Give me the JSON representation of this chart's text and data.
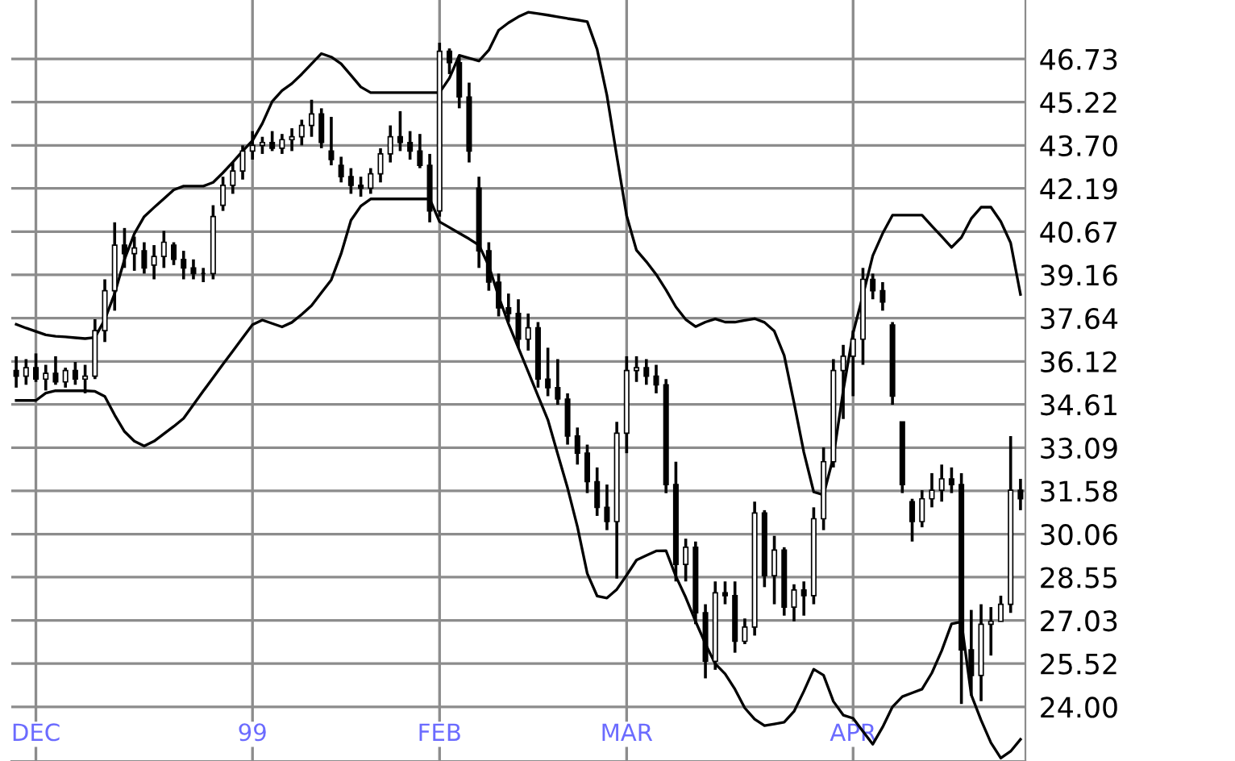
{
  "chart_data": {
    "type": "candlestick",
    "color": "#000000",
    "categories": [
      null,
      null,
      "DEC",
      null,
      null,
      null,
      null,
      null,
      null,
      null,
      null,
      null,
      null,
      null,
      null,
      null,
      null,
      null,
      null,
      null,
      null,
      null,
      null,
      null,
      "99",
      null,
      null,
      null,
      null,
      null,
      null,
      null,
      null,
      null,
      null,
      null,
      null,
      null,
      null,
      null,
      null,
      null,
      null,
      "FEB",
      null,
      null,
      null,
      null,
      null,
      null,
      null,
      null,
      null,
      null,
      null,
      null,
      null,
      null,
      null,
      null,
      null,
      null,
      "MAR",
      null,
      null,
      null,
      null,
      null,
      null,
      null,
      null,
      null,
      null,
      null,
      null,
      null,
      null,
      null,
      null,
      null,
      null,
      null,
      null,
      null,
      null,
      "APR",
      null,
      null,
      null,
      null,
      null,
      null,
      null,
      null,
      null,
      null,
      null,
      null,
      null,
      null,
      null,
      null,
      null
    ],
    "ohlc": [
      [
        35.8,
        36.3,
        35.2,
        35.6
      ],
      [
        35.6,
        36.2,
        35.3,
        35.9
      ],
      [
        35.9,
        36.4,
        35.4,
        35.5
      ],
      [
        35.5,
        36.0,
        35.1,
        35.7
      ],
      [
        35.7,
        36.3,
        35.3,
        35.4
      ],
      [
        35.4,
        35.9,
        35.2,
        35.8
      ],
      [
        35.8,
        36.1,
        35.3,
        35.5
      ],
      [
        35.5,
        36.0,
        35.0,
        35.6
      ],
      [
        35.6,
        37.6,
        35.5,
        37.2
      ],
      [
        37.2,
        39.0,
        36.8,
        38.6
      ],
      [
        38.6,
        41.0,
        37.9,
        40.2
      ],
      [
        40.2,
        40.8,
        39.4,
        39.9
      ],
      [
        39.9,
        40.5,
        39.3,
        40.1
      ],
      [
        40.0,
        40.3,
        39.2,
        39.4
      ],
      [
        39.5,
        40.2,
        39.0,
        39.8
      ],
      [
        39.8,
        40.7,
        39.4,
        40.3
      ],
      [
        40.2,
        40.3,
        39.5,
        39.7
      ],
      [
        39.7,
        40.0,
        39.0,
        39.4
      ],
      [
        39.4,
        39.7,
        39.0,
        39.2
      ],
      [
        39.2,
        39.4,
        38.9,
        39.2
      ],
      [
        39.2,
        41.6,
        39.0,
        41.2
      ],
      [
        41.6,
        42.6,
        41.4,
        42.3
      ],
      [
        42.3,
        43.1,
        42.0,
        42.8
      ],
      [
        42.8,
        43.7,
        42.5,
        43.5
      ],
      [
        43.5,
        44.2,
        43.2,
        43.7
      ],
      [
        43.7,
        44.0,
        43.4,
        43.8
      ],
      [
        43.8,
        44.2,
        43.5,
        43.6
      ],
      [
        43.6,
        44.1,
        43.4,
        43.9
      ],
      [
        43.9,
        44.3,
        43.5,
        44.0
      ],
      [
        44.0,
        44.6,
        43.7,
        44.4
      ],
      [
        44.4,
        45.3,
        44.0,
        44.8
      ],
      [
        44.8,
        45.0,
        43.6,
        43.8
      ],
      [
        43.5,
        44.7,
        43.0,
        43.2
      ],
      [
        43.0,
        43.3,
        42.4,
        42.6
      ],
      [
        42.6,
        42.9,
        42.0,
        42.3
      ],
      [
        42.3,
        42.6,
        41.9,
        42.2
      ],
      [
        42.2,
        42.9,
        42.0,
        42.7
      ],
      [
        42.7,
        43.6,
        42.4,
        43.4
      ],
      [
        43.4,
        44.4,
        43.1,
        44.0
      ],
      [
        44.0,
        44.9,
        43.5,
        43.8
      ],
      [
        43.8,
        44.2,
        43.2,
        43.5
      ],
      [
        43.5,
        44.1,
        42.9,
        43.0
      ],
      [
        43.0,
        43.4,
        41.0,
        41.4
      ],
      [
        41.4,
        47.3,
        41.2,
        47.0
      ],
      [
        47.0,
        47.1,
        46.2,
        46.6
      ],
      [
        46.6,
        46.8,
        45.0,
        45.4
      ],
      [
        45.4,
        45.9,
        43.1,
        43.5
      ],
      [
        42.2,
        42.6,
        39.4,
        40.0
      ],
      [
        40.0,
        40.3,
        38.6,
        38.9
      ],
      [
        38.9,
        39.2,
        37.7,
        38.0
      ],
      [
        38.0,
        38.5,
        37.5,
        37.8
      ],
      [
        37.8,
        38.3,
        36.6,
        36.9
      ],
      [
        36.9,
        37.8,
        36.5,
        37.3
      ],
      [
        37.3,
        37.5,
        35.2,
        35.5
      ],
      [
        35.5,
        36.6,
        34.9,
        35.2
      ],
      [
        35.2,
        36.2,
        34.6,
        34.8
      ],
      [
        34.8,
        35.0,
        33.2,
        33.5
      ],
      [
        33.5,
        33.8,
        32.5,
        32.9
      ],
      [
        32.9,
        33.2,
        31.5,
        31.9
      ],
      [
        31.9,
        32.4,
        30.7,
        31.0
      ],
      [
        31.0,
        31.8,
        30.2,
        30.5
      ],
      [
        30.5,
        34.0,
        28.5,
        33.6
      ],
      [
        33.6,
        36.3,
        32.9,
        35.8
      ],
      [
        35.8,
        36.3,
        35.4,
        35.9
      ],
      [
        35.9,
        36.2,
        35.3,
        35.6
      ],
      [
        35.6,
        36.0,
        35.0,
        35.3
      ],
      [
        35.3,
        35.5,
        31.5,
        31.8
      ],
      [
        31.8,
        32.6,
        28.4,
        29.0
      ],
      [
        29.0,
        29.9,
        28.4,
        29.6
      ],
      [
        29.6,
        29.8,
        26.9,
        27.3
      ],
      [
        27.3,
        27.6,
        25.0,
        25.6
      ],
      [
        25.6,
        28.4,
        25.3,
        28.0
      ],
      [
        28.0,
        28.4,
        27.6,
        27.9
      ],
      [
        27.9,
        28.4,
        25.9,
        26.3
      ],
      [
        26.3,
        27.1,
        26.2,
        26.8
      ],
      [
        26.8,
        31.2,
        26.5,
        30.8
      ],
      [
        30.8,
        30.9,
        28.2,
        28.6
      ],
      [
        28.6,
        30.0,
        27.6,
        29.5
      ],
      [
        29.5,
        29.6,
        27.2,
        27.5
      ],
      [
        27.5,
        28.3,
        27.0,
        28.1
      ],
      [
        28.1,
        28.4,
        27.2,
        27.9
      ],
      [
        27.9,
        31.0,
        27.6,
        30.6
      ],
      [
        30.6,
        33.1,
        30.2,
        32.6
      ],
      [
        32.6,
        36.2,
        32.4,
        35.8
      ],
      [
        35.8,
        36.7,
        34.1,
        36.3
      ],
      [
        36.3,
        37.2,
        34.9,
        36.9
      ],
      [
        36.9,
        39.4,
        36.0,
        39.0
      ],
      [
        39.0,
        39.2,
        38.3,
        38.6
      ],
      [
        38.6,
        38.9,
        37.9,
        38.2
      ],
      [
        37.4,
        37.5,
        34.6,
        34.9
      ],
      [
        34.0,
        34.0,
        31.5,
        31.8
      ],
      [
        31.2,
        31.3,
        29.8,
        30.5
      ],
      [
        30.5,
        31.6,
        30.3,
        31.3
      ],
      [
        31.3,
        32.2,
        31.0,
        31.6
      ],
      [
        31.6,
        32.5,
        31.2,
        32.0
      ],
      [
        32.0,
        32.4,
        31.5,
        31.8
      ],
      [
        31.8,
        32.2,
        24.1,
        26.0
      ],
      [
        26.0,
        27.4,
        24.4,
        25.1
      ],
      [
        25.1,
        27.6,
        24.2,
        26.9
      ],
      [
        26.9,
        27.5,
        25.8,
        27.0
      ],
      [
        27.0,
        27.9,
        27.0,
        27.6
      ],
      [
        27.6,
        33.5,
        27.3,
        31.6
      ],
      [
        31.6,
        32.0,
        30.9,
        31.3
      ]
    ],
    "series": [
      {
        "type": "line",
        "color": "#000000",
        "values": [
          37.42,
          37.29,
          37.17,
          37.05,
          37.0,
          36.98,
          36.95,
          36.92,
          36.96,
          37.59,
          38.5,
          39.7,
          40.6,
          41.2,
          41.52,
          41.83,
          42.14,
          42.27,
          42.27,
          42.27,
          42.4,
          42.74,
          43.11,
          43.5,
          43.87,
          44.47,
          45.24,
          45.62,
          45.87,
          46.2,
          46.56,
          46.92,
          46.8,
          46.56,
          46.16,
          45.75,
          45.55,
          45.55,
          45.55,
          45.55,
          45.55,
          45.55,
          45.55,
          45.55,
          46.06,
          46.86,
          46.76,
          46.66,
          47.04,
          47.74,
          48.0,
          48.21,
          48.37,
          48.32,
          48.27,
          48.21,
          48.15,
          48.1,
          48.04,
          47.07,
          45.45,
          43.32,
          41.23,
          40.02,
          39.62,
          39.17,
          38.63,
          38.03,
          37.59,
          37.34,
          37.5,
          37.61,
          37.5,
          37.5,
          37.56,
          37.62,
          37.49,
          37.18,
          36.33,
          34.67,
          32.93,
          31.54,
          31.44,
          32.77,
          35.1,
          37.12,
          38.44,
          39.83,
          40.61,
          41.25,
          41.25,
          41.25,
          41.25,
          40.87,
          40.5,
          40.12,
          40.47,
          41.13,
          41.53,
          41.53,
          41.03,
          40.28,
          38.47
        ]
      },
      {
        "type": "line",
        "color": "#000000",
        "values": [
          34.75,
          34.75,
          34.75,
          35.01,
          35.09,
          35.09,
          35.09,
          35.09,
          35.07,
          34.89,
          34.24,
          33.66,
          33.32,
          33.15,
          33.32,
          33.58,
          33.84,
          34.12,
          34.6,
          35.08,
          35.55,
          36.02,
          36.48,
          36.95,
          37.41,
          37.57,
          37.45,
          37.33,
          37.49,
          37.77,
          38.08,
          38.53,
          38.98,
          39.9,
          41.07,
          41.57,
          41.82,
          41.82,
          41.82,
          41.82,
          41.82,
          41.82,
          41.82,
          41.02,
          40.82,
          40.62,
          40.42,
          40.2,
          39.47,
          38.4,
          37.44,
          36.6,
          35.76,
          34.91,
          34.07,
          32.87,
          31.68,
          30.32,
          28.68,
          27.89,
          27.82,
          28.12,
          28.62,
          29.15,
          29.31,
          29.47,
          29.48,
          28.58,
          27.84,
          27.0,
          26.21,
          25.51,
          25.16,
          24.62,
          23.96,
          23.57,
          23.34,
          23.4,
          23.46,
          23.84,
          24.55,
          25.32,
          25.11,
          24.19,
          23.71,
          23.6,
          23.14,
          22.69,
          23.29,
          24.0,
          24.36,
          24.49,
          24.62,
          25.19,
          25.97,
          26.91,
          26.98,
          24.42,
          23.53,
          22.74,
          22.2,
          22.44,
          22.86
        ]
      }
    ],
    "ylim": [
      22.1,
      48.8
    ],
    "yticks": [
      {
        "value": 24,
        "label": "24.00"
      },
      25.52,
      27.03,
      28.55,
      30.06,
      31.58,
      33.09,
      34.61,
      36.12,
      37.64,
      39.16,
      40.67,
      42.19,
      {
        "value": 43.7,
        "label": "43.70"
      },
      45.22,
      46.73
    ],
    "grid": true
  }
}
